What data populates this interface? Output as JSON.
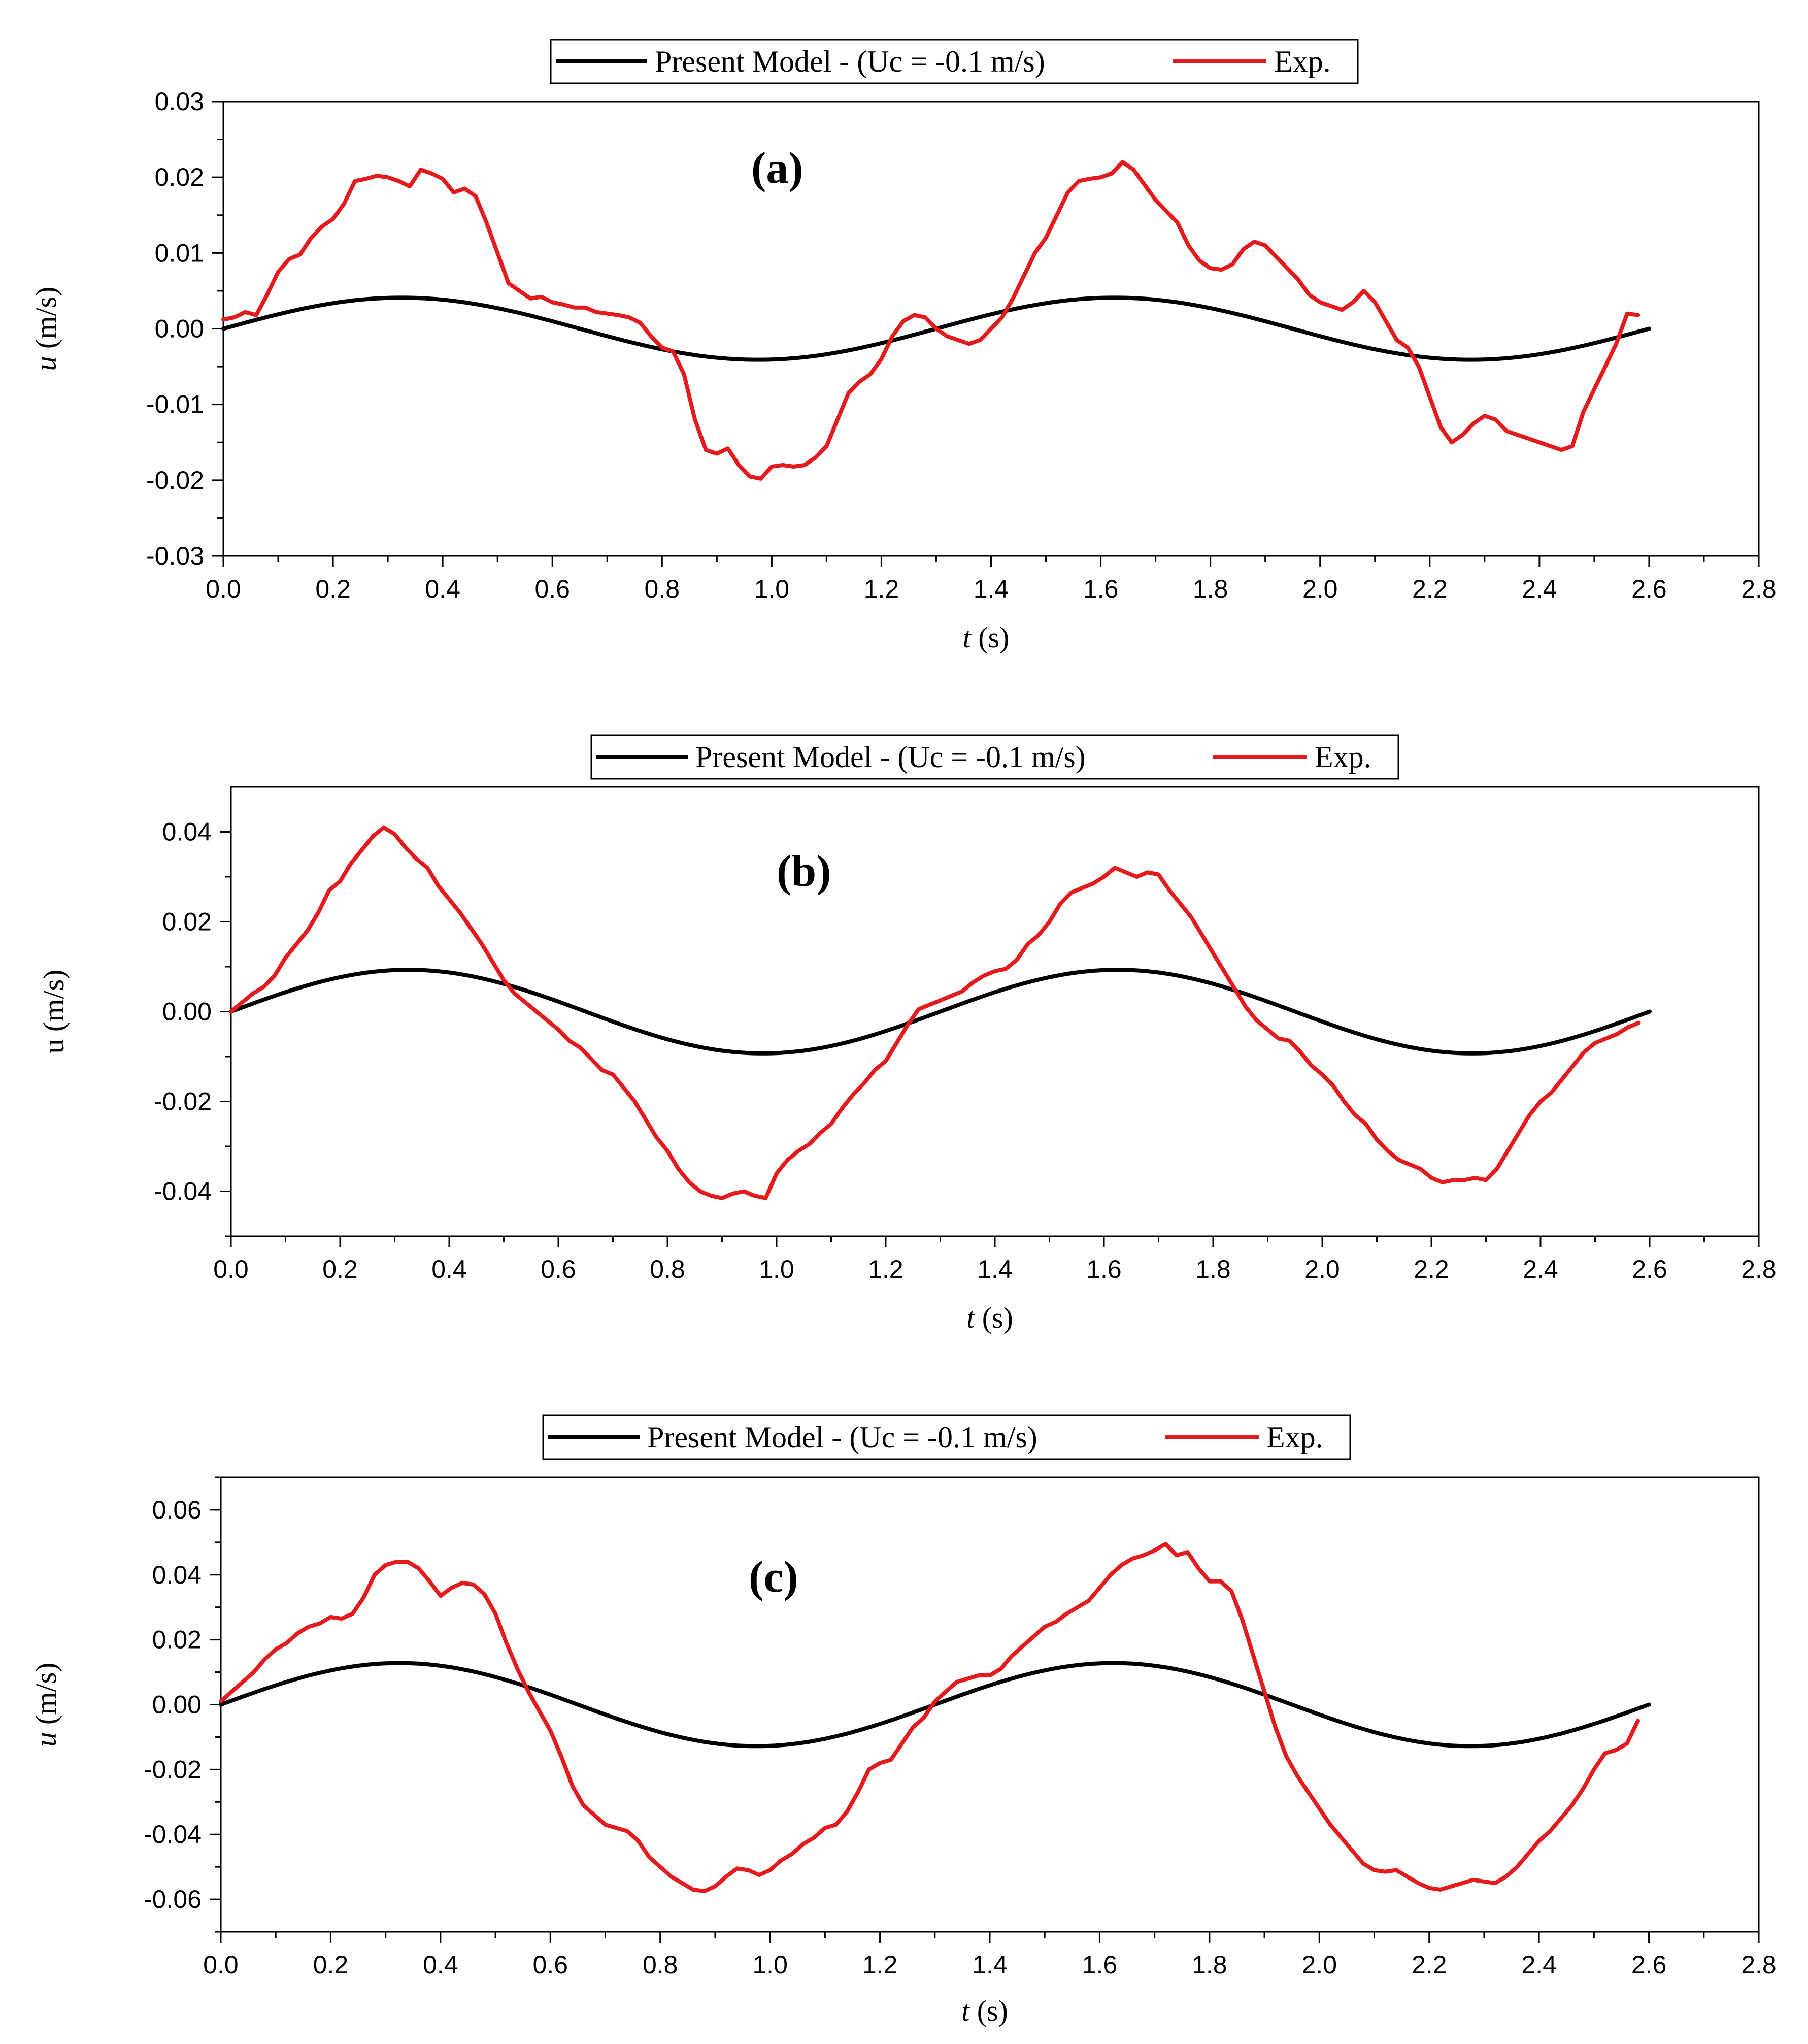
{
  "figure": {
    "colors": {
      "model": "#000000",
      "experiment": "#e41a1c",
      "axes": "#000000"
    }
  },
  "chart_data": [
    {
      "type": "line",
      "panel_label": "(a)",
      "xlabel_var": "t",
      "xlabel_unit": " (s)",
      "ylabel_var": "u",
      "ylabel_unit": " (m/s)",
      "ylabel_italic": true,
      "xlim": [
        0,
        2.8
      ],
      "ylim": [
        -0.03,
        0.03
      ],
      "xticks": [
        0,
        0.2,
        0.4,
        0.6,
        0.8,
        1.0,
        1.2,
        1.4,
        1.6,
        1.8,
        2.0,
        2.2,
        2.4,
        2.6,
        2.8
      ],
      "xtick_labels": [
        "0.0",
        "0.2",
        "0.4",
        "0.6",
        "0.8",
        "1.0",
        "1.2",
        "1.4",
        "1.6",
        "1.8",
        "2.0",
        "2.2",
        "2.4",
        "2.6",
        "2.8"
      ],
      "yticks": [
        -0.03,
        -0.02,
        -0.01,
        0,
        0.01,
        0.02,
        0.03
      ],
      "ytick_labels": [
        "-0.03",
        "-0.02",
        "-0.01",
        "0.00",
        "0.01",
        "0.02",
        "0.03"
      ],
      "legend": [
        "Present Model - (Uc = -0.1 m/s)",
        "Exp."
      ],
      "series": [
        {
          "name": "Present Model - (Uc = -0.1 m/s)",
          "color": "#000000",
          "model": {
            "amplitude": 0.0041,
            "period": 1.3,
            "t_end": 2.6
          }
        },
        {
          "name": "Exp.",
          "color": "#e41a1c",
          "x": [
            0,
            0.02,
            0.04,
            0.06,
            0.08,
            0.1,
            0.12,
            0.14,
            0.16,
            0.18,
            0.2,
            0.22,
            0.24,
            0.26,
            0.28,
            0.3,
            0.32,
            0.34,
            0.36,
            0.38,
            0.4,
            0.42,
            0.44,
            0.46,
            0.48,
            0.5,
            0.52,
            0.54,
            0.56,
            0.58,
            0.6,
            0.62,
            0.64,
            0.66,
            0.68,
            0.7,
            0.72,
            0.74,
            0.76,
            0.78,
            0.8,
            0.82,
            0.84,
            0.86,
            0.88,
            0.9,
            0.92,
            0.94,
            0.96,
            0.98,
            1.0,
            1.02,
            1.04,
            1.06,
            1.08,
            1.1,
            1.12,
            1.14,
            1.16,
            1.18,
            1.2,
            1.22,
            1.24,
            1.26,
            1.28,
            1.3,
            1.32,
            1.34,
            1.36,
            1.38,
            1.4,
            1.42,
            1.44,
            1.46,
            1.48,
            1.5,
            1.52,
            1.54,
            1.56,
            1.58,
            1.6,
            1.62,
            1.64,
            1.66,
            1.68,
            1.7,
            1.72,
            1.74,
            1.76,
            1.78,
            1.8,
            1.82,
            1.84,
            1.86,
            1.88,
            1.9,
            1.92,
            1.94,
            1.96,
            1.98,
            2.0,
            2.02,
            2.04,
            2.06,
            2.08,
            2.1,
            2.12,
            2.14,
            2.16,
            2.18,
            2.2,
            2.22,
            2.24,
            2.26,
            2.28,
            2.3,
            2.32,
            2.34,
            2.36,
            2.38,
            2.4,
            2.42,
            2.44,
            2.46,
            2.48,
            2.5,
            2.52,
            2.54,
            2.56,
            2.58
          ],
          "y": [
            0.0012,
            0.0015,
            0.0022,
            0.0018,
            0.0045,
            0.0075,
            0.0092,
            0.0098,
            0.012,
            0.0135,
            0.0145,
            0.0165,
            0.0195,
            0.0198,
            0.0202,
            0.02,
            0.0195,
            0.0188,
            0.021,
            0.0205,
            0.0198,
            0.018,
            0.0185,
            0.0175,
            0.014,
            0.01,
            0.006,
            0.005,
            0.004,
            0.0042,
            0.0035,
            0.0032,
            0.0028,
            0.0028,
            0.0022,
            0.002,
            0.0018,
            0.0015,
            0.0008,
            -0.001,
            -0.0025,
            -0.003,
            -0.006,
            -0.012,
            -0.016,
            -0.0165,
            -0.0158,
            -0.018,
            -0.0195,
            -0.0198,
            -0.0182,
            -0.018,
            -0.0182,
            -0.018,
            -0.017,
            -0.0155,
            -0.012,
            -0.0085,
            -0.007,
            -0.006,
            -0.004,
            -0.001,
            0.001,
            0.0018,
            0.0015,
            0.0,
            -0.001,
            -0.0015,
            -0.002,
            -0.0015,
            0.0,
            0.0015,
            0.004,
            0.007,
            0.01,
            0.012,
            0.015,
            0.018,
            0.0195,
            0.0198,
            0.02,
            0.0205,
            0.022,
            0.021,
            0.019,
            0.017,
            0.0155,
            0.014,
            0.011,
            0.009,
            0.008,
            0.0078,
            0.0085,
            0.0105,
            0.0115,
            0.011,
            0.0095,
            0.008,
            0.0065,
            0.0045,
            0.0035,
            0.003,
            0.0025,
            0.0035,
            0.005,
            0.0035,
            0.001,
            -0.0015,
            -0.0025,
            -0.005,
            -0.009,
            -0.013,
            -0.015,
            -0.014,
            -0.0125,
            -0.0115,
            -0.012,
            -0.0135,
            -0.014,
            -0.0145,
            -0.015,
            -0.0155,
            -0.016,
            -0.0155,
            -0.011,
            -0.008,
            -0.005,
            -0.002,
            0.002,
            0.0018
          ]
        }
      ]
    },
    {
      "type": "line",
      "panel_label": "(b)",
      "xlabel_var": "t",
      "xlabel_unit": " (s)",
      "ylabel_var": "u",
      "ylabel_unit": " (m/s)",
      "ylabel_italic": false,
      "xlim": [
        0,
        2.8
      ],
      "ylim": [
        -0.05,
        0.05
      ],
      "xticks": [
        0,
        0.2,
        0.4,
        0.6,
        0.8,
        1.0,
        1.2,
        1.4,
        1.6,
        1.8,
        2.0,
        2.2,
        2.4,
        2.6,
        2.8
      ],
      "xtick_labels": [
        "0.0",
        "0.2",
        "0.4",
        "0.6",
        "0.8",
        "1.0",
        "1.2",
        "1.4",
        "1.6",
        "1.8",
        "2.0",
        "2.2",
        "2.4",
        "2.6",
        "2.8"
      ],
      "yticks": [
        -0.04,
        -0.02,
        0,
        0.02,
        0.04
      ],
      "ytick_labels": [
        "-0.04",
        "-0.02",
        "0.00",
        "0.02",
        "0.04"
      ],
      "legend": [
        "Present Model - (Uc = -0.1 m/s)",
        "Exp."
      ],
      "series": [
        {
          "name": "Present Model - (Uc = -0.1 m/s)",
          "color": "#000000",
          "model": {
            "amplitude": 0.0093,
            "period": 1.3,
            "t_end": 2.6
          }
        },
        {
          "name": "Exp.",
          "color": "#e41a1c",
          "x": [
            0,
            0.02,
            0.04,
            0.06,
            0.08,
            0.1,
            0.12,
            0.14,
            0.16,
            0.18,
            0.2,
            0.22,
            0.24,
            0.26,
            0.28,
            0.3,
            0.32,
            0.34,
            0.36,
            0.38,
            0.4,
            0.42,
            0.44,
            0.46,
            0.48,
            0.5,
            0.52,
            0.54,
            0.56,
            0.58,
            0.6,
            0.62,
            0.64,
            0.66,
            0.68,
            0.7,
            0.72,
            0.74,
            0.76,
            0.78,
            0.8,
            0.82,
            0.84,
            0.86,
            0.88,
            0.9,
            0.92,
            0.94,
            0.96,
            0.98,
            1.0,
            1.02,
            1.04,
            1.06,
            1.08,
            1.1,
            1.12,
            1.14,
            1.16,
            1.18,
            1.2,
            1.22,
            1.24,
            1.26,
            1.28,
            1.3,
            1.32,
            1.34,
            1.36,
            1.38,
            1.4,
            1.42,
            1.44,
            1.46,
            1.48,
            1.5,
            1.52,
            1.54,
            1.56,
            1.58,
            1.6,
            1.62,
            1.64,
            1.66,
            1.68,
            1.7,
            1.72,
            1.74,
            1.76,
            1.78,
            1.8,
            1.82,
            1.84,
            1.86,
            1.88,
            1.9,
            1.92,
            1.94,
            1.96,
            1.98,
            2.0,
            2.02,
            2.04,
            2.06,
            2.08,
            2.1,
            2.12,
            2.14,
            2.16,
            2.18,
            2.2,
            2.22,
            2.24,
            2.26,
            2.28,
            2.3,
            2.32,
            2.34,
            2.36,
            2.38,
            2.4,
            2.42,
            2.44,
            2.46,
            2.48,
            2.5,
            2.52,
            2.54,
            2.56,
            2.58
          ],
          "y": [
            0.0,
            0.002,
            0.004,
            0.0055,
            0.008,
            0.012,
            0.015,
            0.018,
            0.022,
            0.027,
            0.029,
            0.033,
            0.036,
            0.039,
            0.041,
            0.0395,
            0.0365,
            0.034,
            0.032,
            0.028,
            0.025,
            0.022,
            0.0185,
            0.015,
            0.011,
            0.007,
            0.004,
            0.002,
            0.0,
            -0.002,
            -0.004,
            -0.0065,
            -0.008,
            -0.0105,
            -0.013,
            -0.014,
            -0.017,
            -0.02,
            -0.024,
            -0.028,
            -0.031,
            -0.035,
            -0.038,
            -0.04,
            -0.041,
            -0.0415,
            -0.0405,
            -0.04,
            -0.041,
            -0.0415,
            -0.036,
            -0.033,
            -0.031,
            -0.0295,
            -0.027,
            -0.025,
            -0.0215,
            -0.0185,
            -0.016,
            -0.013,
            -0.011,
            -0.007,
            -0.003,
            0.0005,
            0.0015,
            0.0025,
            0.0035,
            0.0045,
            0.0065,
            0.008,
            0.009,
            0.0095,
            0.0115,
            0.015,
            0.017,
            0.02,
            0.024,
            0.0265,
            0.0275,
            0.0285,
            0.03,
            0.032,
            0.031,
            0.03,
            0.031,
            0.0305,
            0.027,
            0.024,
            0.021,
            0.017,
            0.013,
            0.009,
            0.005,
            0.001,
            -0.002,
            -0.004,
            -0.006,
            -0.0065,
            -0.009,
            -0.012,
            -0.014,
            -0.0165,
            -0.02,
            -0.023,
            -0.025,
            -0.0285,
            -0.031,
            -0.033,
            -0.034,
            -0.035,
            -0.037,
            -0.038,
            -0.0375,
            -0.0375,
            -0.037,
            -0.0375,
            -0.035,
            -0.031,
            -0.027,
            -0.023,
            -0.02,
            -0.018,
            -0.015,
            -0.012,
            -0.009,
            -0.007,
            -0.006,
            -0.005,
            -0.0035,
            -0.0025
          ]
        }
      ]
    },
    {
      "type": "line",
      "panel_label": "(c)",
      "xlabel_var": "t",
      "xlabel_unit": " (s)",
      "ylabel_var": "u",
      "ylabel_unit": " (m/s)",
      "ylabel_italic": true,
      "xlim": [
        0,
        2.8
      ],
      "ylim": [
        -0.07,
        0.07
      ],
      "xticks": [
        0,
        0.2,
        0.4,
        0.6,
        0.8,
        1.0,
        1.2,
        1.4,
        1.6,
        1.8,
        2.0,
        2.2,
        2.4,
        2.6,
        2.8
      ],
      "xtick_labels": [
        "0.0",
        "0.2",
        "0.4",
        "0.6",
        "0.8",
        "1.0",
        "1.2",
        "1.4",
        "1.6",
        "1.8",
        "2.0",
        "2.2",
        "2.4",
        "2.6",
        "2.8"
      ],
      "yticks": [
        -0.06,
        -0.04,
        -0.02,
        0,
        0.02,
        0.04,
        0.06
      ],
      "ytick_labels": [
        "-0.06",
        "-0.04",
        "-0.02",
        "0.00",
        "0.02",
        "0.04",
        "0.06"
      ],
      "legend": [
        "Present Model - (Uc = -0.1 m/s)",
        "Exp."
      ],
      "series": [
        {
          "name": "Present Model - (Uc = -0.1 m/s)",
          "color": "#000000",
          "model": {
            "amplitude": 0.0128,
            "period": 1.3,
            "t_end": 2.6
          }
        },
        {
          "name": "Exp.",
          "color": "#e41a1c",
          "x": [
            0,
            0.02,
            0.04,
            0.06,
            0.08,
            0.1,
            0.12,
            0.14,
            0.16,
            0.18,
            0.2,
            0.22,
            0.24,
            0.26,
            0.28,
            0.3,
            0.32,
            0.34,
            0.36,
            0.38,
            0.4,
            0.42,
            0.44,
            0.46,
            0.48,
            0.5,
            0.52,
            0.54,
            0.56,
            0.58,
            0.6,
            0.62,
            0.64,
            0.66,
            0.68,
            0.7,
            0.72,
            0.74,
            0.76,
            0.78,
            0.8,
            0.82,
            0.84,
            0.86,
            0.88,
            0.9,
            0.92,
            0.94,
            0.96,
            0.98,
            1.0,
            1.02,
            1.04,
            1.06,
            1.08,
            1.1,
            1.12,
            1.14,
            1.16,
            1.18,
            1.2,
            1.22,
            1.24,
            1.26,
            1.28,
            1.3,
            1.32,
            1.34,
            1.36,
            1.38,
            1.4,
            1.42,
            1.44,
            1.46,
            1.48,
            1.5,
            1.52,
            1.54,
            1.56,
            1.58,
            1.6,
            1.62,
            1.64,
            1.66,
            1.68,
            1.7,
            1.72,
            1.74,
            1.76,
            1.78,
            1.8,
            1.82,
            1.84,
            1.86,
            1.88,
            1.9,
            1.92,
            1.94,
            1.96,
            1.98,
            2.0,
            2.02,
            2.04,
            2.06,
            2.08,
            2.1,
            2.12,
            2.14,
            2.16,
            2.18,
            2.2,
            2.22,
            2.24,
            2.26,
            2.28,
            2.3,
            2.32,
            2.34,
            2.36,
            2.38,
            2.4,
            2.42,
            2.44,
            2.46,
            2.48,
            2.5,
            2.52,
            2.54,
            2.56,
            2.58
          ],
          "y": [
            0.001,
            0.004,
            0.007,
            0.01,
            0.014,
            0.017,
            0.019,
            0.022,
            0.024,
            0.025,
            0.027,
            0.0265,
            0.028,
            0.033,
            0.04,
            0.043,
            0.044,
            0.044,
            0.042,
            0.038,
            0.0335,
            0.036,
            0.0375,
            0.037,
            0.034,
            0.028,
            0.019,
            0.011,
            0.004,
            -0.002,
            -0.008,
            -0.016,
            -0.025,
            -0.031,
            -0.034,
            -0.037,
            -0.038,
            -0.039,
            -0.042,
            -0.047,
            -0.05,
            -0.053,
            -0.055,
            -0.057,
            -0.0575,
            -0.056,
            -0.053,
            -0.0505,
            -0.051,
            -0.0525,
            -0.051,
            -0.048,
            -0.046,
            -0.043,
            -0.041,
            -0.038,
            -0.037,
            -0.033,
            -0.027,
            -0.02,
            -0.018,
            -0.017,
            -0.012,
            -0.007,
            -0.004,
            0.001,
            0.004,
            0.007,
            0.008,
            0.009,
            0.009,
            0.011,
            0.015,
            0.018,
            0.021,
            0.024,
            0.0255,
            0.028,
            0.03,
            0.032,
            0.036,
            0.04,
            0.043,
            0.045,
            0.046,
            0.0475,
            0.0495,
            0.046,
            0.047,
            0.042,
            0.038,
            0.038,
            0.035,
            0.026,
            0.015,
            0.004,
            -0.007,
            -0.016,
            -0.022,
            -0.027,
            -0.032,
            -0.037,
            -0.041,
            -0.045,
            -0.049,
            -0.051,
            -0.0515,
            -0.051,
            -0.053,
            -0.055,
            -0.0565,
            -0.057,
            -0.056,
            -0.055,
            -0.054,
            -0.0545,
            -0.055,
            -0.053,
            -0.05,
            -0.046,
            -0.042,
            -0.039,
            -0.035,
            -0.031,
            -0.026,
            -0.02,
            -0.015,
            -0.014,
            -0.012,
            -0.005
          ]
        }
      ]
    }
  ]
}
